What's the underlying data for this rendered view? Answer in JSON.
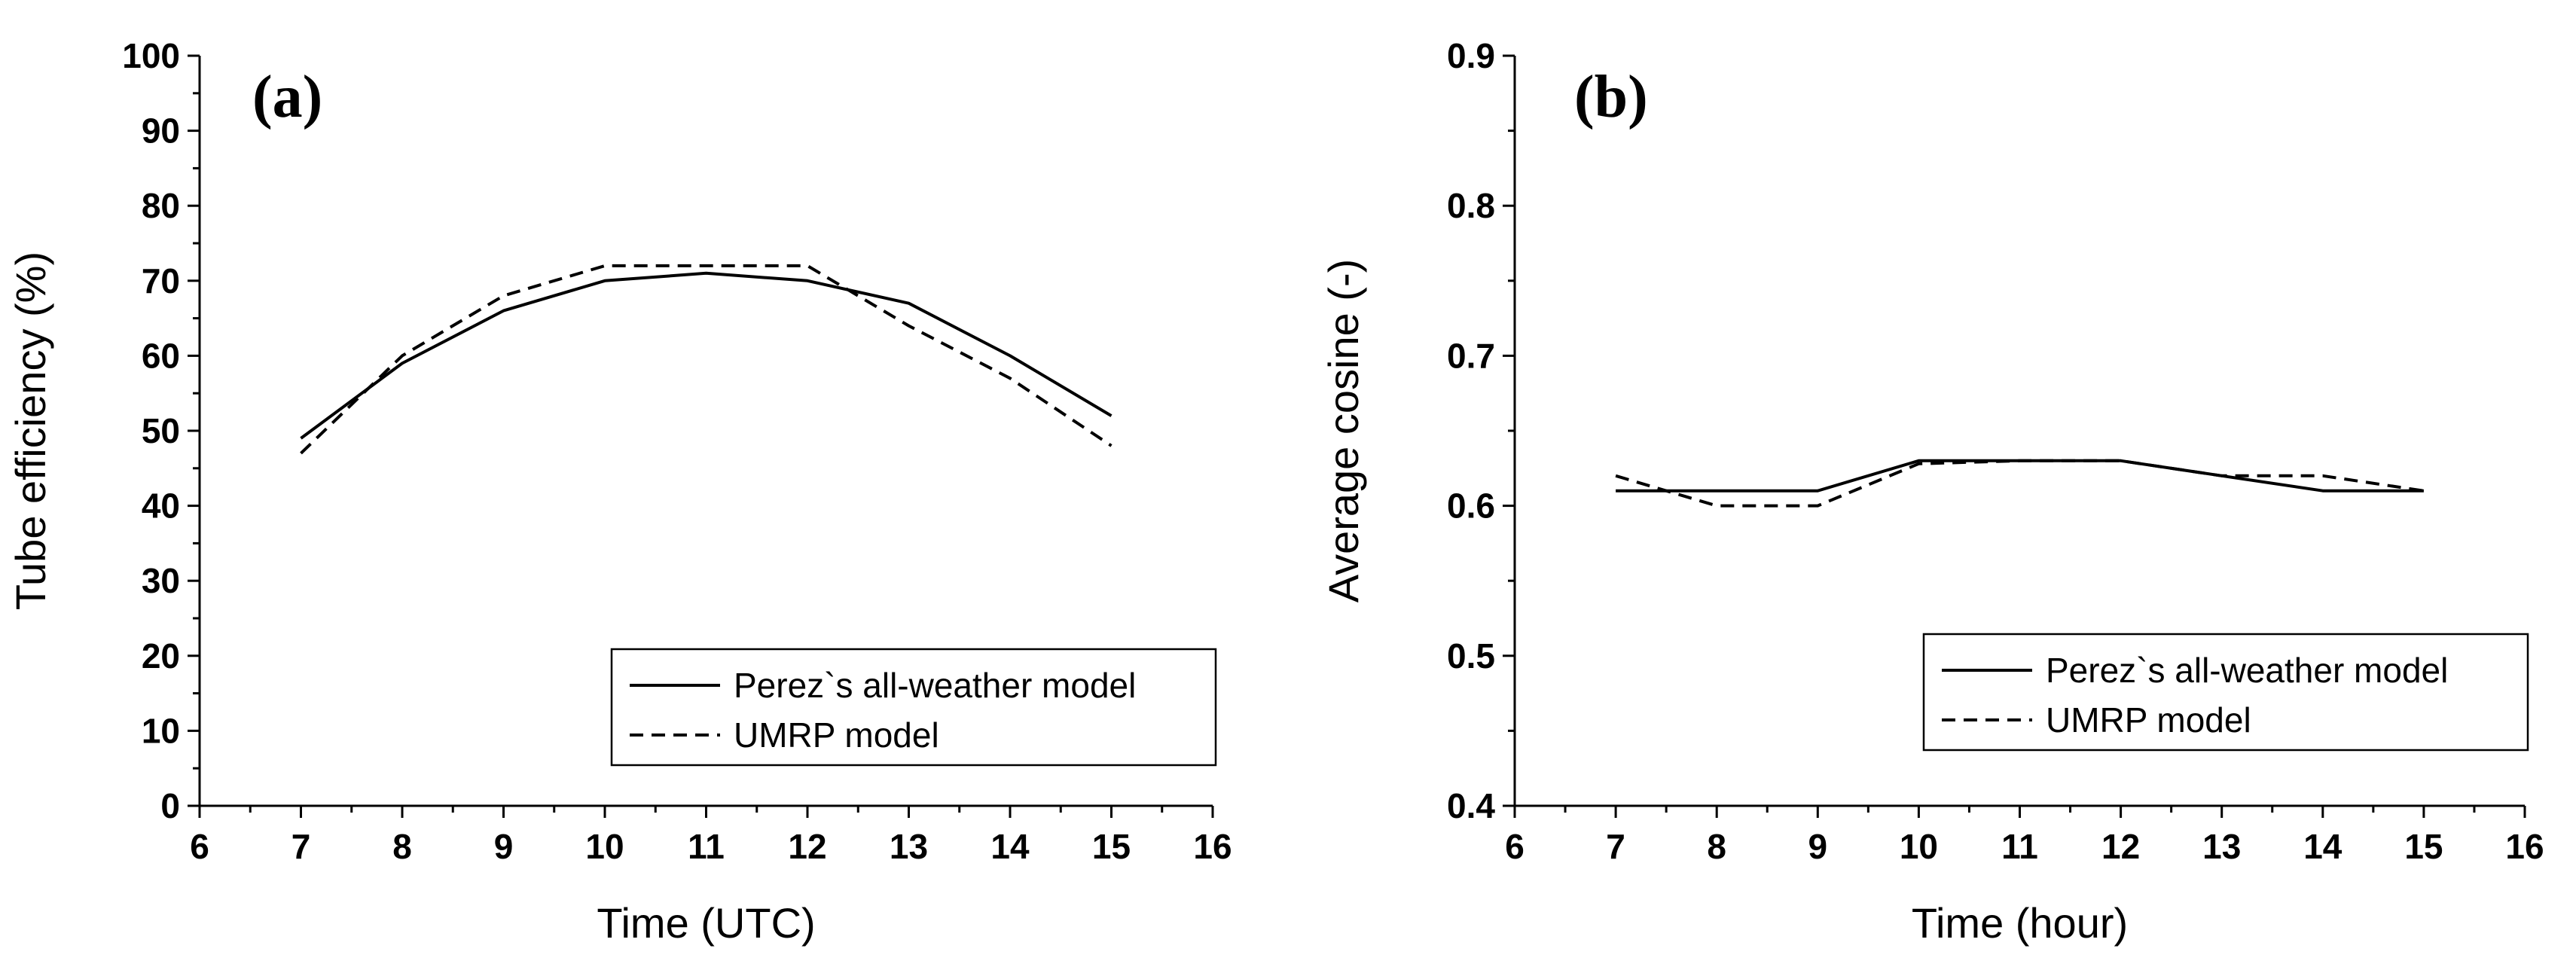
{
  "chart_data": [
    {
      "type": "line",
      "panel_label": "(a)",
      "xlabel": "Time (UTC)",
      "ylabel": "Tube efficiency (%)",
      "xlim": [
        6,
        16
      ],
      "ylim": [
        0,
        100
      ],
      "xticks": [
        6,
        7,
        8,
        9,
        10,
        11,
        12,
        13,
        14,
        15,
        16
      ],
      "yticks": [
        0,
        10,
        20,
        30,
        40,
        50,
        60,
        70,
        80,
        90,
        100
      ],
      "tick_labels_x": [
        "6",
        "7",
        "8",
        "9",
        "10",
        "11",
        "12",
        "13",
        "14",
        "15",
        "16"
      ],
      "tick_labels_y": [
        "0",
        "10",
        "20",
        "30",
        "40",
        "50",
        "60",
        "70",
        "80",
        "90",
        "100"
      ],
      "legend_position": "bottom-right",
      "grid": false,
      "series": [
        {
          "name": "Perez`s all-weather model",
          "style": "solid",
          "x": [
            7,
            8,
            9,
            10,
            11,
            12,
            13,
            14,
            15
          ],
          "values": [
            49,
            59,
            66,
            70,
            71,
            70,
            67,
            60,
            52
          ]
        },
        {
          "name": "UMRP model",
          "style": "dashed",
          "x": [
            7,
            8,
            9,
            10,
            11,
            12,
            13,
            14,
            15
          ],
          "values": [
            47,
            60,
            68,
            72,
            72,
            72,
            64,
            57,
            48
          ]
        }
      ]
    },
    {
      "type": "line",
      "panel_label": "(b)",
      "xlabel": "Time (hour)",
      "ylabel": "Average cosine (-)",
      "xlim": [
        6,
        16
      ],
      "ylim": [
        0.4,
        0.9
      ],
      "xticks": [
        6,
        7,
        8,
        9,
        10,
        11,
        12,
        13,
        14,
        15,
        16
      ],
      "yticks": [
        0.4,
        0.5,
        0.6,
        0.7,
        0.8,
        0.9
      ],
      "tick_labels_x": [
        "6",
        "7",
        "8",
        "9",
        "10",
        "11",
        "12",
        "13",
        "14",
        "15",
        "16"
      ],
      "tick_labels_y": [
        "0.4",
        "0.5",
        "0.6",
        "0.7",
        "0.8",
        "0.9"
      ],
      "legend_position": "bottom-right",
      "grid": false,
      "series": [
        {
          "name": "Perez`s all-weather model",
          "style": "solid",
          "x": [
            7,
            8,
            9,
            10,
            11,
            12,
            13,
            14,
            15
          ],
          "values": [
            0.61,
            0.61,
            0.61,
            0.63,
            0.63,
            0.63,
            0.62,
            0.61,
            0.61
          ]
        },
        {
          "name": "UMRP model",
          "style": "dashed",
          "x": [
            7,
            8,
            9,
            10,
            11,
            12,
            13,
            14,
            15
          ],
          "values": [
            0.62,
            0.6,
            0.6,
            0.628,
            0.63,
            0.63,
            0.62,
            0.62,
            0.61
          ]
        }
      ]
    }
  ]
}
